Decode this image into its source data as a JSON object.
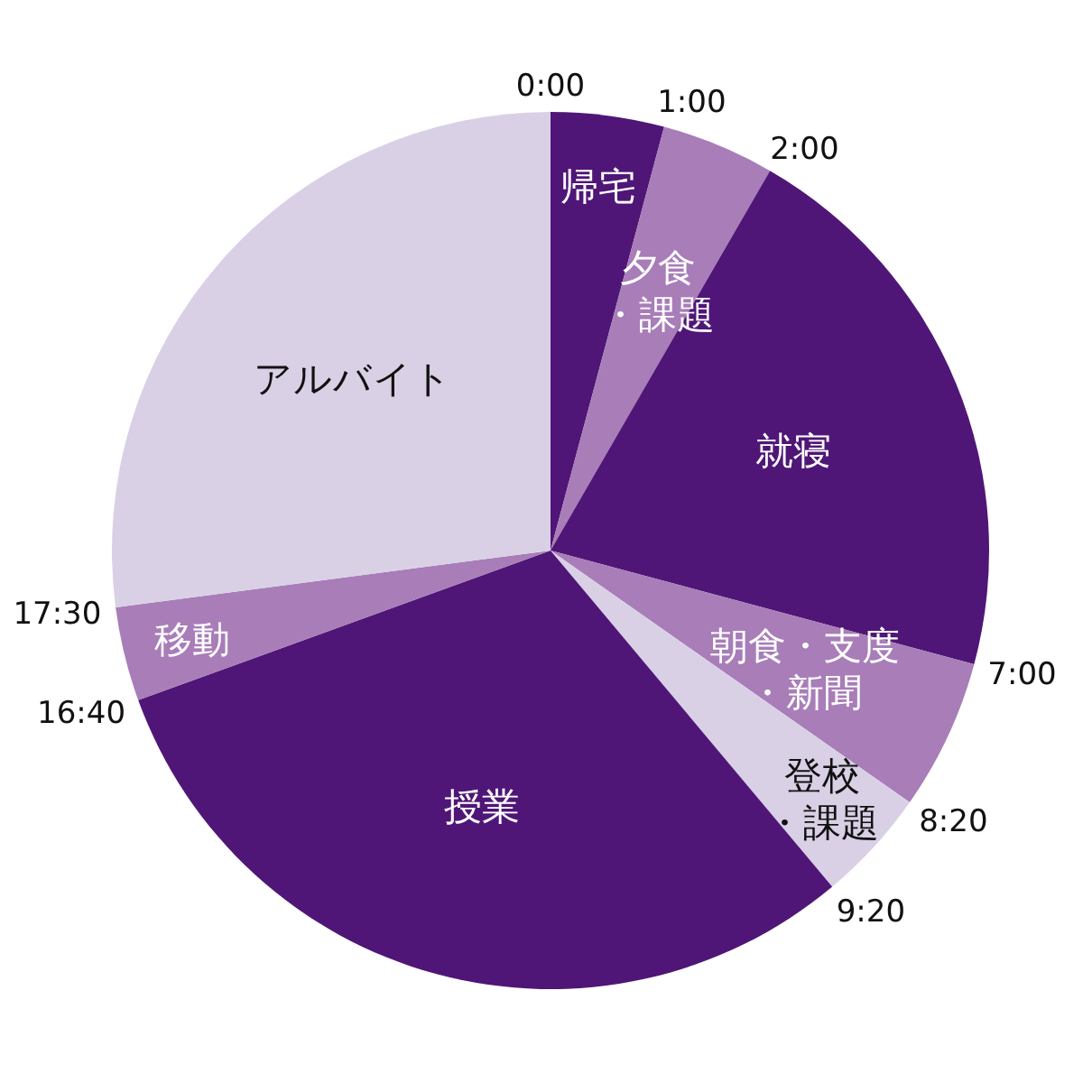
{
  "chart_data": {
    "type": "pie",
    "categories": [
      "帰宅",
      "夕食・課題",
      "就寝",
      "朝食・支度・新聞",
      "登校・課題",
      "授業",
      "移動",
      "アルバイト"
    ],
    "values": [
      4.17,
      4.17,
      20.83,
      5.56,
      4.17,
      30.56,
      3.47,
      27.07
    ],
    "colors": [
      "#4f1677",
      "#a87db8",
      "#4f1677",
      "#a87db8",
      "#d9d0e6",
      "#4f1677",
      "#a87db8",
      "#d9d0e6"
    ],
    "annotations": [
      "0:00",
      "1:00",
      "2:00",
      "7:00",
      "8:20",
      "9:20",
      "16:40",
      "17:30"
    ]
  }
}
